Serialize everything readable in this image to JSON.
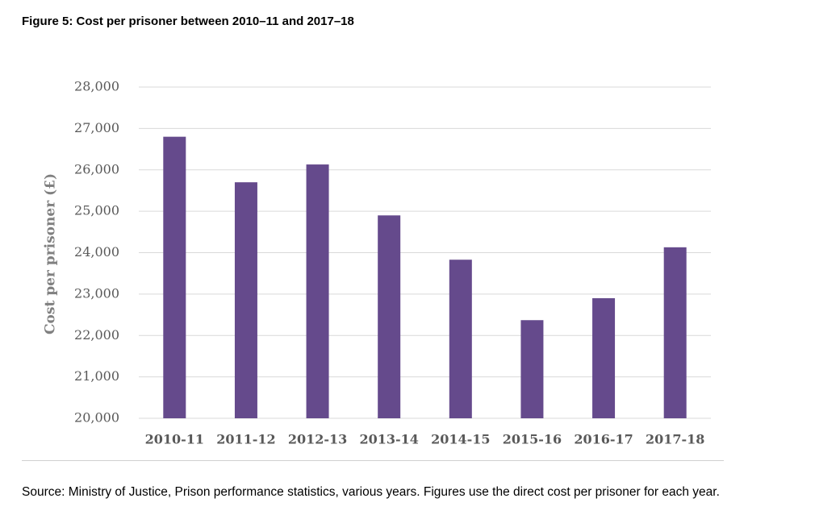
{
  "figure": {
    "title": "Figure 5: Cost per prisoner between 2010–11 and 2017–18",
    "source": "Source: Ministry of Justice, Prison performance statistics, various years. Figures use the direct cost per prisoner for each year."
  },
  "colors": {
    "bar": "#654a8c",
    "grid": "#d9d9d9",
    "tick_text": "#595959",
    "axis_label": "#808080"
  },
  "chart_data": {
    "type": "bar",
    "title": "Figure 5: Cost per prisoner between 2010–11 and 2017–18",
    "xlabel": "",
    "ylabel": "Cost per prisoner (£)",
    "categories": [
      "2010-11",
      "2011-12",
      "2012-13",
      "2013-14",
      "2014-15",
      "2015-16",
      "2016-17",
      "2017-18"
    ],
    "values": [
      26800,
      25700,
      26130,
      24900,
      23830,
      22370,
      22900,
      24130
    ],
    "ylim": [
      20000,
      28000
    ],
    "yticks": [
      20000,
      21000,
      22000,
      23000,
      24000,
      25000,
      26000,
      27000,
      28000
    ],
    "ytick_labels": [
      "20,000",
      "21,000",
      "22,000",
      "23,000",
      "24,000",
      "25,000",
      "26,000",
      "27,000",
      "28,000"
    ],
    "grid": true,
    "legend": "none"
  }
}
